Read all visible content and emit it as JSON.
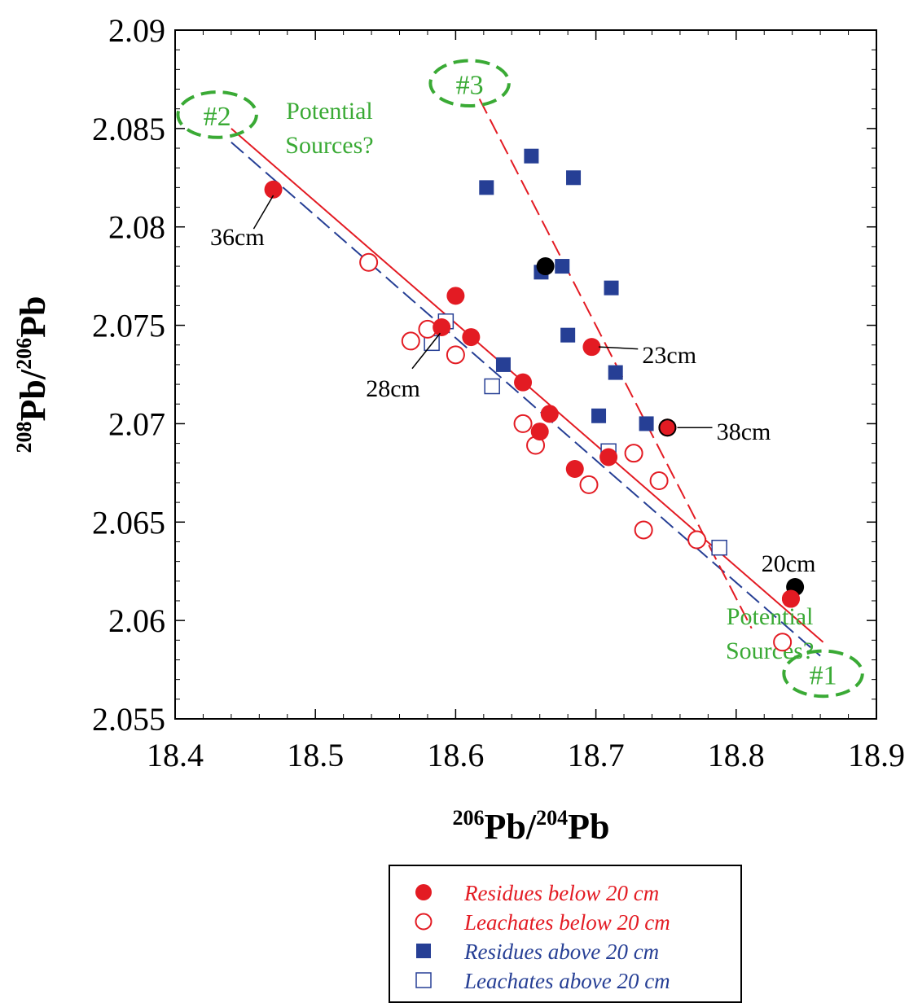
{
  "chart_data": {
    "type": "scatter",
    "xlabel_main": "Pb/",
    "xlabel_sup1": "206",
    "xlabel_sup2": "204",
    "xlabel_tail": "Pb",
    "ylabel_sup1": "208",
    "ylabel_main": "Pb/",
    "ylabel_sup2": "206",
    "ylabel_tail": "Pb",
    "xlim": [
      18.4,
      18.9
    ],
    "ylim": [
      2.055,
      2.09
    ],
    "xticks": [
      "18.4",
      "18.5",
      "18.6",
      "18.7",
      "18.8",
      "18.9"
    ],
    "yticks": [
      "2.055",
      "2.06",
      "2.065",
      "2.07",
      "2.075",
      "2.08",
      "2.085",
      "2.09"
    ],
    "colors": {
      "red": "#e31b23",
      "blue": "#263f95",
      "green": "#3aaa35",
      "black": "#000000"
    },
    "series": [
      {
        "name": "Residues below 20 cm",
        "marker": "filled-circle",
        "color": "#e31b23",
        "points": [
          [
            18.47,
            2.0819
          ],
          [
            18.59,
            2.0749
          ],
          [
            18.6,
            2.0765
          ],
          [
            18.611,
            2.0744
          ],
          [
            18.648,
            2.0721
          ],
          [
            18.66,
            2.0696
          ],
          [
            18.667,
            2.0705
          ],
          [
            18.685,
            2.0677
          ],
          [
            18.697,
            2.0739
          ],
          [
            18.709,
            2.0683
          ],
          [
            18.751,
            2.0698
          ],
          [
            18.839,
            2.0611
          ]
        ]
      },
      {
        "name": "Leachates below 20 cm",
        "marker": "open-circle",
        "color": "#e31b23",
        "points": [
          [
            18.538,
            2.0782
          ],
          [
            18.568,
            2.0742
          ],
          [
            18.58,
            2.0748
          ],
          [
            18.6,
            2.0735
          ],
          [
            18.648,
            2.07
          ],
          [
            18.657,
            2.0689
          ],
          [
            18.695,
            2.0669
          ],
          [
            18.727,
            2.0685
          ],
          [
            18.734,
            2.0646
          ],
          [
            18.745,
            2.0671
          ],
          [
            18.772,
            2.0641
          ],
          [
            18.833,
            2.0589
          ]
        ]
      },
      {
        "name": "Residues above 20 cm",
        "marker": "filled-square",
        "color": "#263f95",
        "points": [
          [
            18.622,
            2.082
          ],
          [
            18.634,
            2.073
          ],
          [
            18.654,
            2.0836
          ],
          [
            18.661,
            2.0777
          ],
          [
            18.676,
            2.078
          ],
          [
            18.68,
            2.0745
          ],
          [
            18.684,
            2.0825
          ],
          [
            18.702,
            2.0704
          ],
          [
            18.711,
            2.0769
          ],
          [
            18.714,
            2.0726
          ],
          [
            18.736,
            2.07
          ]
        ]
      },
      {
        "name": "Leachates above 20 cm",
        "marker": "open-square",
        "color": "#263f95",
        "points": [
          [
            18.583,
            2.0741
          ],
          [
            18.593,
            2.0752
          ],
          [
            18.626,
            2.0719
          ],
          [
            18.709,
            2.0686
          ],
          [
            18.788,
            2.0637
          ]
        ]
      }
    ],
    "highlight_points": [
      {
        "marker": "black-circle",
        "color": "#000000",
        "x": 18.664,
        "y": 2.078
      },
      {
        "marker": "black-circle",
        "color": "#000000",
        "x": 18.751,
        "y": 2.0698
      },
      {
        "marker": "black-circle",
        "color": "#000000",
        "x": 18.842,
        "y": 2.0617
      }
    ],
    "lines": [
      {
        "style": "solid",
        "color": "#e31b23",
        "x1": 18.44,
        "y1": 2.085,
        "x2": 18.862,
        "y2": 2.0589
      },
      {
        "style": "dashed",
        "color": "#263f95",
        "x1": 18.44,
        "y1": 2.0843,
        "x2": 18.86,
        "y2": 2.0582
      },
      {
        "style": "dashed",
        "color": "#e31b23",
        "x1": 18.617,
        "y1": 2.0865,
        "x2": 18.811,
        "y2": 2.0596
      }
    ],
    "annotations": [
      {
        "text": "36cm",
        "x": 18.425,
        "y": 2.0795,
        "tx": 18.456,
        "ty": 2.0799,
        "px": 18.47,
        "py": 2.0816
      },
      {
        "text": "28cm",
        "x": 18.536,
        "y": 2.0718,
        "tx": 18.569,
        "ty": 2.0728,
        "px": 18.589,
        "py": 2.0746
      },
      {
        "text": "23cm",
        "x": 18.733,
        "y": 2.0735,
        "tx": 18.73,
        "ty": 2.0738,
        "px": 18.702,
        "py": 2.0739
      },
      {
        "text": "38cm",
        "x": 18.786,
        "y": 2.0696,
        "tx": 18.783,
        "ty": 2.0698,
        "px": 18.758,
        "py": 2.0698
      },
      {
        "text": "20cm",
        "x": 18.818,
        "y": 2.0629,
        "tx": 0,
        "ty": 0,
        "px": 0,
        "py": 0
      }
    ],
    "sources": [
      {
        "label": "#1",
        "cx": 18.862,
        "cy": 2.0573,
        "rx": 0.028,
        "ry": 0.00115
      },
      {
        "label": "#2",
        "cx": 18.43,
        "cy": 2.0857,
        "rx": 0.028,
        "ry": 0.00115
      },
      {
        "label": "#3",
        "cx": 18.61,
        "cy": 2.0873,
        "rx": 0.028,
        "ry": 0.00115
      }
    ],
    "source_text": [
      {
        "lines": [
          "Potential",
          "Sources?"
        ],
        "x": 18.51,
        "y": 2.0855
      },
      {
        "lines": [
          "Potential",
          "Sources?"
        ],
        "x": 18.824,
        "y": 2.0598
      }
    ],
    "legend": {
      "placement": "bottom-right",
      "entries": [
        {
          "label": "Residues below 20 cm",
          "marker": "filled-circle",
          "color": "#e31b23"
        },
        {
          "label": "Leachates below 20 cm",
          "marker": "open-circle",
          "color": "#e31b23"
        },
        {
          "label": "Residues above 20 cm",
          "marker": "filled-square",
          "color": "#263f95"
        },
        {
          "label": "Leachates above 20 cm",
          "marker": "open-square",
          "color": "#263f95"
        }
      ]
    }
  }
}
